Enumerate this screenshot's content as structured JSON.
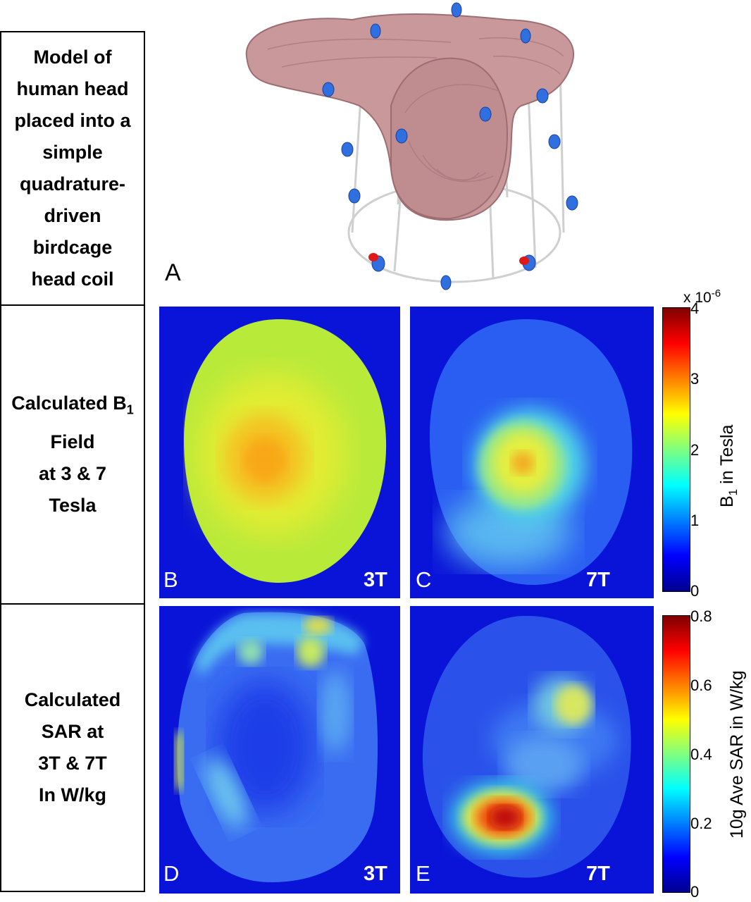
{
  "rows": {
    "a": {
      "lines": [
        "Model of",
        "human head",
        "placed into a",
        "simple",
        "quadrature-",
        "driven",
        "birdcage",
        "head coil"
      ],
      "panel_letter": "A"
    },
    "b": {
      "lines": [
        "Calculated B",
        "Field",
        "at 3 & 7",
        "Tesla"
      ],
      "subscript": "1"
    },
    "c": {
      "lines": [
        "Calculated",
        "SAR at",
        "3T & 7T",
        "In W/kg"
      ]
    }
  },
  "panels": {
    "b": {
      "letter": "B",
      "tag": "3T"
    },
    "c": {
      "letter": "C",
      "tag": "7T"
    },
    "d": {
      "letter": "D",
      "tag": "3T"
    },
    "e": {
      "letter": "E",
      "tag": "7T"
    }
  },
  "colorbar_b1": {
    "exponent_base": "x 10",
    "exponent": "-6",
    "ticks": [
      "4",
      "3",
      "2",
      "1",
      "0"
    ],
    "label_main": "B",
    "label_sub": "1",
    "label_rest": " in Tesla"
  },
  "colorbar_sar": {
    "ticks": [
      "0.8",
      "0.6",
      "0.4",
      "0.2",
      "0"
    ],
    "label": "10g Ave SAR in W/kg"
  },
  "colors": {
    "background_blue": "#0a14d8",
    "head_pink": "#c9989b",
    "coil_blue": "#2f6fe0",
    "coil_red": "#e01818"
  }
}
